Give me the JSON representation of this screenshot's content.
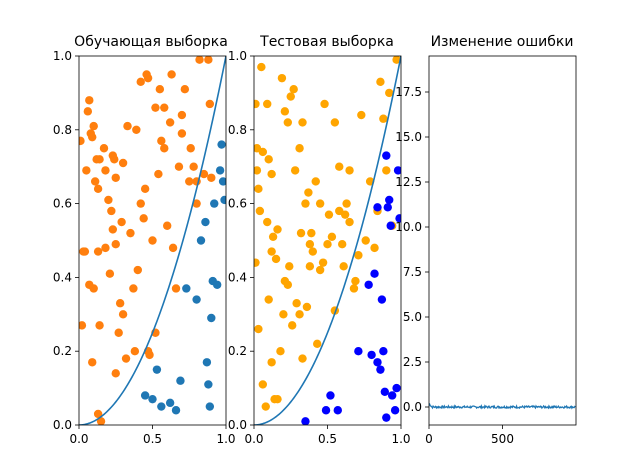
{
  "chart_data": [
    {
      "type": "scatter",
      "title": "Обучающая выборка",
      "xlim": [
        0,
        1
      ],
      "ylim": [
        0,
        1
      ],
      "x_ticks": [
        "0.0",
        "0.5",
        "1.0"
      ],
      "y_ticks": [
        "0.0",
        "0.2",
        "0.4",
        "0.6",
        "0.8",
        "1.0"
      ],
      "grid": false,
      "colors": {
        "class_above": "#ff7f0e",
        "class_below": "#1f77b4",
        "curve": "#1f77b4"
      },
      "curve": {
        "formula": "y = x^2",
        "x_range": [
          0,
          1
        ]
      },
      "series": [
        {
          "points": [
            [
              0.01,
              0.77
            ],
            [
              0.04,
              0.47
            ],
            [
              0.03,
              0.47
            ],
            [
              0.06,
              0.85
            ],
            [
              0.07,
              0.88
            ],
            [
              0.05,
              0.69
            ],
            [
              0.08,
              0.79
            ],
            [
              0.09,
              0.78
            ],
            [
              0.1,
              0.81
            ],
            [
              0.12,
              0.72
            ],
            [
              0.13,
              0.64
            ],
            [
              0.14,
              0.72
            ],
            [
              0.17,
              0.75
            ],
            [
              0.18,
              0.69
            ],
            [
              0.2,
              0.61
            ],
            [
              0.22,
              0.58
            ],
            [
              0.23,
              0.73
            ],
            [
              0.24,
              0.72
            ],
            [
              0.25,
              0.67
            ],
            [
              0.29,
              0.55
            ],
            [
              0.33,
              0.81
            ],
            [
              0.39,
              0.8
            ],
            [
              0.42,
              0.93
            ],
            [
              0.46,
              0.95
            ],
            [
              0.47,
              0.94
            ],
            [
              0.52,
              0.86
            ],
            [
              0.55,
              0.91
            ],
            [
              0.58,
              0.86
            ],
            [
              0.62,
              0.82
            ],
            [
              0.63,
              0.95
            ],
            [
              0.7,
              0.84
            ],
            [
              0.72,
              0.91
            ],
            [
              0.76,
              0.75
            ],
            [
              0.78,
              0.7
            ],
            [
              0.8,
              0.66
            ],
            [
              0.82,
              0.99
            ],
            [
              0.85,
              0.68
            ],
            [
              0.88,
              0.99
            ],
            [
              0.89,
              0.87
            ],
            [
              0.9,
              0.67
            ],
            [
              0.09,
              0.17
            ],
            [
              0.1,
              0.37
            ],
            [
              0.13,
              0.47
            ],
            [
              0.14,
              0.27
            ],
            [
              0.15,
              0.01
            ],
            [
              0.02,
              0.27
            ],
            [
              0.07,
              0.38
            ],
            [
              0.18,
              0.48
            ],
            [
              0.21,
              0.41
            ],
            [
              0.23,
              0.53
            ],
            [
              0.25,
              0.49
            ],
            [
              0.27,
              0.25
            ],
            [
              0.28,
              0.33
            ],
            [
              0.3,
              0.3
            ],
            [
              0.32,
              0.18
            ],
            [
              0.35,
              0.52
            ],
            [
              0.37,
              0.37
            ],
            [
              0.38,
              0.2
            ],
            [
              0.4,
              0.42
            ],
            [
              0.42,
              0.6
            ],
            [
              0.44,
              0.56
            ],
            [
              0.45,
              0.64
            ],
            [
              0.47,
              0.2
            ],
            [
              0.48,
              0.19
            ],
            [
              0.5,
              0.5
            ],
            [
              0.52,
              0.25
            ],
            [
              0.54,
              0.68
            ],
            [
              0.56,
              0.77
            ],
            [
              0.58,
              0.75
            ],
            [
              0.6,
              0.54
            ],
            [
              0.64,
              0.48
            ],
            [
              0.66,
              0.37
            ],
            [
              0.68,
              0.7
            ],
            [
              0.7,
              0.79
            ],
            [
              0.75,
              0.66
            ],
            [
              0.8,
              0.6
            ],
            [
              0.13,
              0.03
            ],
            [
              0.25,
              0.14
            ],
            [
              0.11,
              0.66
            ],
            [
              0.3,
              0.71
            ]
          ],
          "color": "#ff7f0e"
        },
        {
          "points": [
            [
              0.45,
              0.08
            ],
            [
              0.5,
              0.07
            ],
            [
              0.53,
              0.15
            ],
            [
              0.56,
              0.05
            ],
            [
              0.62,
              0.06
            ],
            [
              0.66,
              0.04
            ],
            [
              0.69,
              0.12
            ],
            [
              0.73,
              0.37
            ],
            [
              0.8,
              0.34
            ],
            [
              0.83,
              0.5
            ],
            [
              0.86,
              0.55
            ],
            [
              0.87,
              0.17
            ],
            [
              0.88,
              0.11
            ],
            [
              0.89,
              0.05
            ],
            [
              0.9,
              0.29
            ],
            [
              0.91,
              0.39
            ],
            [
              0.94,
              0.38
            ],
            [
              0.96,
              0.69
            ],
            [
              0.97,
              0.76
            ],
            [
              0.98,
              0.66
            ],
            [
              0.99,
              0.61
            ],
            [
              0.92,
              0.6
            ]
          ],
          "color": "#1f77b4"
        }
      ]
    },
    {
      "type": "scatter",
      "title": "Тестовая выборка",
      "xlim": [
        0,
        1
      ],
      "ylim": [
        0,
        1
      ],
      "x_ticks": [
        "0.0",
        "0.5",
        "1.0"
      ],
      "y_ticks": [
        "0.0",
        "0.2",
        "0.4",
        "0.6",
        "0.8",
        "1.0"
      ],
      "grid": false,
      "colors": {
        "class_above": "#ffa500",
        "class_below": "#0000ff",
        "curve": "#1f77b4"
      },
      "curve": {
        "formula": "y = x^2",
        "x_range": [
          0,
          1
        ]
      },
      "series": [
        {
          "points": [
            [
              0.01,
              0.87
            ],
            [
              0.02,
              0.69
            ],
            [
              0.03,
              0.64
            ],
            [
              0.04,
              0.58
            ],
            [
              0.05,
              0.97
            ],
            [
              0.06,
              0.74
            ],
            [
              0.09,
              0.87
            ],
            [
              0.1,
              0.72
            ],
            [
              0.12,
              0.68
            ],
            [
              0.13,
              0.51
            ],
            [
              0.15,
              0.45
            ],
            [
              0.16,
              0.53
            ],
            [
              0.19,
              0.94
            ],
            [
              0.21,
              0.85
            ],
            [
              0.23,
              0.82
            ],
            [
              0.25,
              0.89
            ],
            [
              0.27,
              0.91
            ],
            [
              0.31,
              0.75
            ],
            [
              0.33,
              0.82
            ],
            [
              0.37,
              0.63
            ],
            [
              0.39,
              0.52
            ],
            [
              0.42,
              0.66
            ],
            [
              0.45,
              0.6
            ],
            [
              0.48,
              0.87
            ],
            [
              0.51,
              0.57
            ],
            [
              0.55,
              0.82
            ],
            [
              0.58,
              0.7
            ],
            [
              0.6,
              0.49
            ],
            [
              0.61,
              0.43
            ],
            [
              0.63,
              0.6
            ],
            [
              0.65,
              0.55
            ],
            [
              0.69,
              0.39
            ],
            [
              0.71,
              0.46
            ],
            [
              0.73,
              0.84
            ],
            [
              0.76,
              0.5
            ],
            [
              0.79,
              0.66
            ],
            [
              0.82,
              0.48
            ],
            [
              0.84,
              0.58
            ],
            [
              0.86,
              0.93
            ],
            [
              0.88,
              0.83
            ],
            [
              0.9,
              0.69
            ],
            [
              0.92,
              0.9
            ],
            [
              0.94,
              0.54
            ],
            [
              0.97,
              0.99
            ],
            [
              0.03,
              0.26
            ],
            [
              0.06,
              0.11
            ],
            [
              0.08,
              0.05
            ],
            [
              0.1,
              0.34
            ],
            [
              0.12,
              0.17
            ],
            [
              0.14,
              0.07
            ],
            [
              0.16,
              0.07
            ],
            [
              0.18,
              0.2
            ],
            [
              0.21,
              0.39
            ],
            [
              0.23,
              0.38
            ],
            [
              0.26,
              0.27
            ],
            [
              0.29,
              0.33
            ],
            [
              0.31,
              0.3
            ],
            [
              0.33,
              0.18
            ],
            [
              0.36,
              0.32
            ],
            [
              0.38,
              0.43
            ],
            [
              0.4,
              0.47
            ],
            [
              0.43,
              0.22
            ],
            [
              0.45,
              0.42
            ],
            [
              0.47,
              0.44
            ],
            [
              0.5,
              0.49
            ],
            [
              0.53,
              0.51
            ],
            [
              0.55,
              0.31
            ],
            [
              0.58,
              0.58
            ],
            [
              0.62,
              0.57
            ],
            [
              0.65,
              0.69
            ],
            [
              0.68,
              0.37
            ],
            [
              0.01,
              0.44
            ],
            [
              0.02,
              0.75
            ],
            [
              0.09,
              0.55
            ],
            [
              0.12,
              0.47
            ],
            [
              0.2,
              0.3
            ],
            [
              0.24,
              0.43
            ],
            [
              0.28,
              0.69
            ],
            [
              0.32,
              0.52
            ],
            [
              0.35,
              0.6
            ],
            [
              0.38,
              0.49
            ]
          ],
          "color": "#ffa500"
        },
        {
          "points": [
            [
              0.35,
              0.01
            ],
            [
              0.49,
              0.04
            ],
            [
              0.52,
              0.08
            ],
            [
              0.57,
              0.04
            ],
            [
              0.71,
              0.2
            ],
            [
              0.78,
              0.38
            ],
            [
              0.8,
              0.19
            ],
            [
              0.82,
              0.41
            ],
            [
              0.84,
              0.17
            ],
            [
              0.86,
              0.15
            ],
            [
              0.87,
              0.34
            ],
            [
              0.88,
              0.2
            ],
            [
              0.89,
              0.09
            ],
            [
              0.9,
              0.02
            ],
            [
              0.91,
              0.59
            ],
            [
              0.92,
              0.61
            ],
            [
              0.93,
              0.54
            ],
            [
              0.94,
              0.08
            ],
            [
              0.96,
              0.04
            ],
            [
              0.97,
              0.1
            ],
            [
              0.98,
              0.69
            ],
            [
              0.99,
              0.56
            ],
            [
              0.9,
              0.73
            ],
            [
              0.84,
              0.59
            ]
          ],
          "color": "#0000ff"
        }
      ]
    },
    {
      "type": "line",
      "title": "Изменение ошибки",
      "xlim": [
        0,
        1000
      ],
      "ylim": [
        -1,
        19.5
      ],
      "x_ticks": [
        "0",
        "500"
      ],
      "y_ticks": [
        "0.0",
        "2.5",
        "5.0",
        "7.5",
        "10.0",
        "12.5",
        "15.0",
        "17.5"
      ],
      "grid": false,
      "series": [
        {
          "color": "#1f77b4",
          "start": 0.2,
          "plateau": 0.0,
          "length": 1000
        }
      ]
    }
  ]
}
